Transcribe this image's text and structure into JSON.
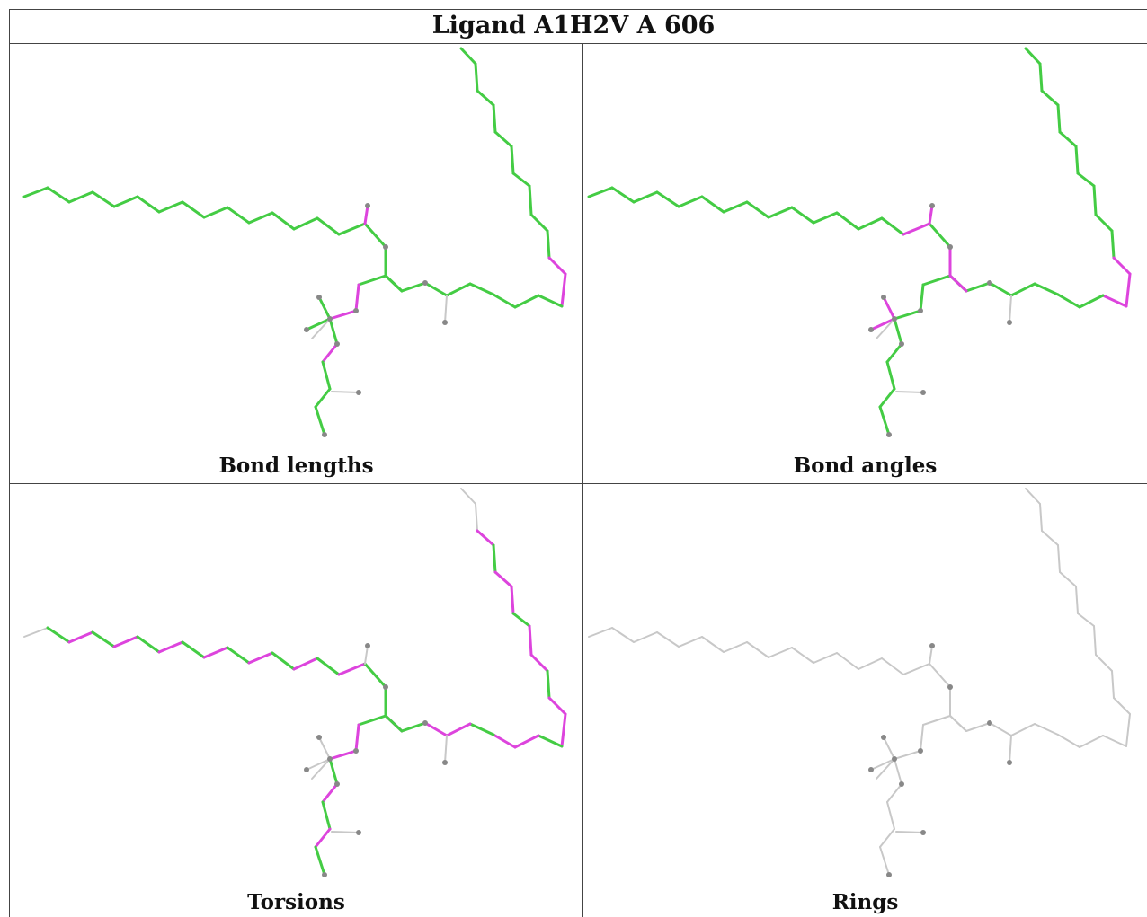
{
  "title": "Ligand A1H2V A 606",
  "panels": [
    {
      "caption": "Bond lengths"
    },
    {
      "caption": "Bond angles"
    },
    {
      "caption": "Torsions"
    },
    {
      "caption": "Rings"
    }
  ],
  "colors": {
    "ok": "#44cc44",
    "outlier": "#dd44dd",
    "neutral": "#c8c8c8",
    "atom": "#888888",
    "border": "#444444"
  }
}
